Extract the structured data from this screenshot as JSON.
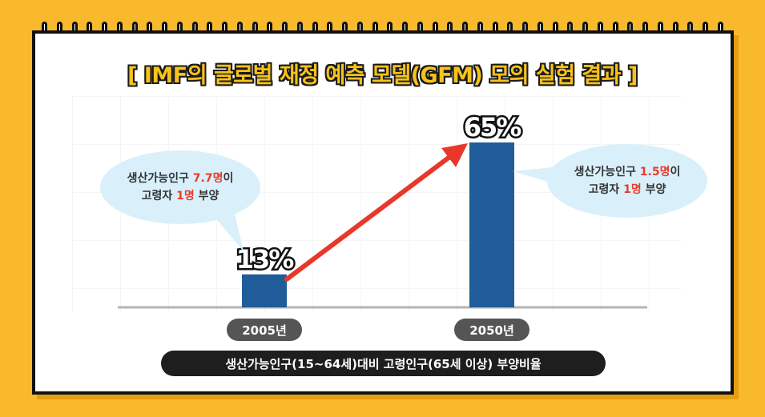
{
  "title": "[ IMF의 글로벌 재정 예측 모델(GFM) 모의 실험 결과 ]",
  "caption": "생산가능인구(15~64세)대비 고령인구(65세 이상) 부양비율",
  "bubbles": [
    {
      "line1_pre": "생산가능인구 ",
      "line1_red": "7.7명",
      "line1_post": "이",
      "line2_pre": "고령자 ",
      "line2_red": "1명",
      "line2_post": " 부양"
    },
    {
      "line1_pre": "생산가능인구 ",
      "line1_red": "1.5명",
      "line1_post": "이",
      "line2_pre": "고령자 ",
      "line2_red": "1명",
      "line2_post": " 부양"
    }
  ],
  "colors": {
    "bar": "#1f5c99",
    "arrow": "#e8382a",
    "background": "#f9b92c",
    "title_fill": "#f7c21a"
  },
  "chart_data": {
    "type": "bar",
    "categories": [
      "2005년",
      "2050년"
    ],
    "values": [
      13,
      65
    ],
    "data_labels": [
      "13%",
      "65%"
    ],
    "ylim": [
      0,
      65
    ],
    "grid": true,
    "annotation": "arrow from 2005년 bar to 2050년 bar"
  }
}
